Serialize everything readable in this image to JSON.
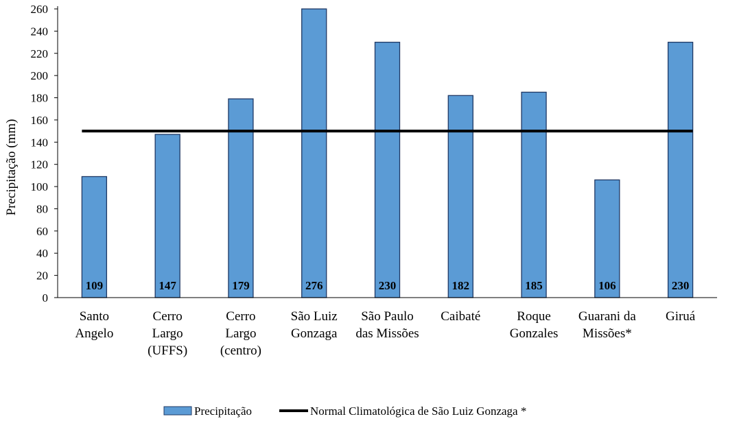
{
  "chart_data": {
    "type": "bar",
    "title": "",
    "xlabel": "",
    "ylabel": "Precipitação  (mm)",
    "ylim": [
      0,
      260
    ],
    "yticks": [
      0,
      20,
      40,
      60,
      80,
      100,
      120,
      140,
      160,
      180,
      200,
      220,
      240,
      260
    ],
    "grid": false,
    "categories": [
      [
        "Santo",
        "Angelo"
      ],
      [
        "Cerro",
        "Largo",
        "(UFFS)"
      ],
      [
        "Cerro",
        "Largo",
        "(centro)"
      ],
      [
        "São Luiz",
        "Gonzaga"
      ],
      [
        "São Paulo",
        "das Missões"
      ],
      [
        "Caibaté"
      ],
      [
        "Roque",
        "Gonzales"
      ],
      [
        "Guarani da",
        "Missões*"
      ],
      [
        "Giruá"
      ]
    ],
    "series": [
      {
        "name": "Precipitação",
        "type": "bar",
        "color": "#5b9bd5",
        "values": [
          109,
          147,
          179,
          276,
          230,
          182,
          185,
          106,
          230
        ],
        "data_labels": [
          "109",
          "147",
          "179",
          "276",
          "230",
          "182",
          "185",
          "106",
          "230"
        ]
      },
      {
        "name": "Normal Climatológica de São Luiz Gonzaga *",
        "type": "line",
        "color": "#000000",
        "value": 150
      }
    ],
    "legend_position": "bottom-center"
  }
}
